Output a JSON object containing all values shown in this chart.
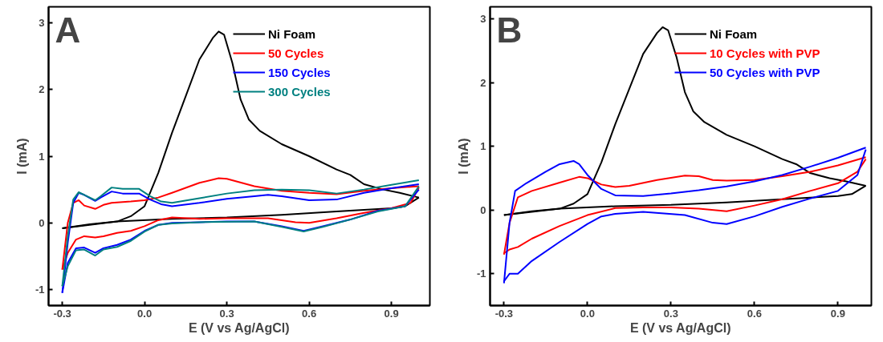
{
  "chart_data": [
    {
      "type": "line",
      "title": "A",
      "xlabel": "E (V vs Ag/AgCl)",
      "ylabel": "I (mA)",
      "xlim": [
        -0.35,
        1.04
      ],
      "ylim": [
        -1.24,
        3.24
      ],
      "xticks": [
        -0.3,
        {
          "value": 0,
          "label": "0.0"
        },
        0.3,
        0.6,
        0.9
      ],
      "yticks": [
        -1,
        0,
        1,
        2,
        3
      ],
      "legend": "top right",
      "grid": false,
      "marker": "none",
      "line_style": "solid",
      "series": [
        {
          "name": "Ni Foam",
          "color": "#000000",
          "x": [
            -0.3,
            -0.2,
            -0.1,
            -0.05,
            0.0,
            0.05,
            0.1,
            0.15,
            0.2,
            0.25,
            0.27,
            0.29,
            0.32,
            0.35,
            0.38,
            0.42,
            0.5,
            0.6,
            0.7,
            0.75,
            0.8,
            0.87,
            0.93,
            1.0
          ],
          "values": [
            -0.08,
            -0.02,
            0.02,
            0.1,
            0.25,
            0.75,
            1.35,
            1.9,
            2.45,
            2.78,
            2.87,
            2.82,
            2.4,
            1.85,
            1.55,
            1.38,
            1.18,
            1.0,
            0.8,
            0.72,
            0.58,
            0.5,
            0.45,
            0.38
          ]
        },
        {
          "color": "#000000",
          "x": [
            -0.3,
            -0.2,
            -0.1,
            0.1,
            0.3,
            0.5,
            0.7,
            0.9,
            0.95,
            1.0
          ],
          "values": [
            -0.08,
            -0.03,
            0.02,
            0.06,
            0.08,
            0.12,
            0.17,
            0.22,
            0.25,
            0.38
          ]
        },
        {
          "name": "50 Cycles",
          "color": "#ff0000",
          "x": [
            -0.3,
            -0.28,
            -0.26,
            -0.24,
            -0.22,
            -0.18,
            -0.15,
            -0.12,
            -0.05,
            0.0,
            0.05,
            0.1,
            0.2,
            0.27,
            0.3,
            0.4,
            0.5,
            0.6,
            0.7,
            0.8,
            0.9,
            1.0
          ],
          "values": [
            -0.7,
            0.0,
            0.3,
            0.34,
            0.26,
            0.21,
            0.27,
            0.3,
            0.32,
            0.34,
            0.38,
            0.45,
            0.6,
            0.67,
            0.66,
            0.55,
            0.48,
            0.45,
            0.43,
            0.48,
            0.52,
            0.55
          ]
        },
        {
          "color": "#ff0000",
          "x": [
            -0.3,
            -0.28,
            -0.25,
            -0.22,
            -0.18,
            -0.15,
            -0.1,
            -0.05,
            0.0,
            0.05,
            0.1,
            0.2,
            0.3,
            0.45,
            0.55,
            0.6,
            0.7,
            0.8,
            0.9,
            0.97,
            1.0
          ],
          "values": [
            -0.7,
            -0.45,
            -0.25,
            -0.2,
            -0.22,
            -0.2,
            -0.15,
            -0.12,
            -0.05,
            0.04,
            0.08,
            0.06,
            0.07,
            0.07,
            0.01,
            0.0,
            0.07,
            0.15,
            0.22,
            0.3,
            0.53
          ]
        },
        {
          "name": "150 Cycles",
          "color": "#0000ff",
          "x": [
            -0.3,
            -0.28,
            -0.26,
            -0.24,
            -0.22,
            -0.18,
            -0.16,
            -0.12,
            -0.08,
            -0.02,
            0.02,
            0.06,
            0.1,
            0.2,
            0.3,
            0.4,
            0.45,
            0.5,
            0.6,
            0.7,
            0.8,
            0.9,
            1.0
          ],
          "values": [
            -1.05,
            -0.3,
            0.3,
            0.45,
            0.42,
            0.33,
            0.38,
            0.47,
            0.44,
            0.44,
            0.35,
            0.28,
            0.25,
            0.3,
            0.36,
            0.4,
            0.42,
            0.4,
            0.34,
            0.35,
            0.45,
            0.52,
            0.58
          ]
        },
        {
          "color": "#0000ff",
          "x": [
            -0.3,
            -0.28,
            -0.25,
            -0.22,
            -0.18,
            -0.15,
            -0.1,
            -0.05,
            0.0,
            0.05,
            0.1,
            0.2,
            0.3,
            0.4,
            0.5,
            0.58,
            0.65,
            0.75,
            0.85,
            0.95,
            1.0
          ],
          "values": [
            -1.05,
            -0.6,
            -0.38,
            -0.37,
            -0.45,
            -0.38,
            -0.33,
            -0.25,
            -0.12,
            -0.03,
            0.0,
            0.01,
            0.02,
            0.02,
            -0.05,
            -0.12,
            -0.05,
            0.05,
            0.18,
            0.25,
            0.5
          ]
        },
        {
          "name": "300 Cycles",
          "color": "#008080",
          "x": [
            -0.3,
            -0.28,
            -0.26,
            -0.24,
            -0.22,
            -0.18,
            -0.16,
            -0.12,
            -0.08,
            -0.02,
            0.02,
            0.06,
            0.1,
            0.2,
            0.3,
            0.4,
            0.5,
            0.6,
            0.7,
            0.8,
            0.9,
            1.0
          ],
          "values": [
            -0.95,
            -0.2,
            0.35,
            0.46,
            0.42,
            0.34,
            0.4,
            0.53,
            0.51,
            0.51,
            0.4,
            0.32,
            0.3,
            0.37,
            0.44,
            0.49,
            0.5,
            0.49,
            0.44,
            0.5,
            0.57,
            0.64
          ]
        },
        {
          "color": "#008080",
          "x": [
            -0.3,
            -0.28,
            -0.25,
            -0.22,
            -0.18,
            -0.15,
            -0.1,
            -0.05,
            0.0,
            0.05,
            0.1,
            0.2,
            0.4,
            0.5,
            0.58,
            0.65,
            0.75,
            0.85,
            0.95,
            1.0
          ],
          "values": [
            -0.95,
            -0.65,
            -0.41,
            -0.4,
            -0.49,
            -0.4,
            -0.36,
            -0.27,
            -0.13,
            -0.03,
            -0.01,
            0.01,
            0.02,
            -0.06,
            -0.13,
            -0.06,
            0.05,
            0.17,
            0.25,
            0.55
          ]
        }
      ]
    },
    {
      "type": "line",
      "title": "B",
      "xlabel": "E (V vs Ag/AgCl)",
      "ylabel": "I (mA)",
      "xlim": [
        -0.35,
        1.02
      ],
      "ylim": [
        -1.5,
        3.19
      ],
      "xticks": [
        -0.3,
        {
          "value": 0,
          "label": "0.0"
        },
        0.3,
        0.6,
        0.9
      ],
      "yticks": [
        -1,
        0,
        1,
        2,
        3
      ],
      "legend": "top right",
      "grid": false,
      "marker": "none",
      "line_style": "solid",
      "series": [
        {
          "name": "Ni Foam",
          "color": "#000000",
          "x": [
            -0.3,
            -0.2,
            -0.1,
            -0.05,
            0.0,
            0.05,
            0.1,
            0.15,
            0.2,
            0.25,
            0.27,
            0.29,
            0.32,
            0.35,
            0.38,
            0.42,
            0.5,
            0.6,
            0.7,
            0.75,
            0.8,
            0.87,
            0.93,
            1.0
          ],
          "values": [
            -0.08,
            -0.02,
            0.02,
            0.1,
            0.25,
            0.75,
            1.35,
            1.9,
            2.45,
            2.78,
            2.87,
            2.82,
            2.4,
            1.85,
            1.55,
            1.38,
            1.18,
            1.0,
            0.8,
            0.72,
            0.58,
            0.5,
            0.45,
            0.38
          ]
        },
        {
          "color": "#000000",
          "x": [
            -0.3,
            -0.2,
            -0.1,
            0.1,
            0.3,
            0.5,
            0.7,
            0.9,
            0.95,
            1.0
          ],
          "values": [
            -0.08,
            -0.03,
            0.02,
            0.06,
            0.08,
            0.12,
            0.17,
            0.22,
            0.25,
            0.38
          ]
        },
        {
          "name": "10 Cycles with PVP",
          "color": "#ff0000",
          "x": [
            -0.3,
            -0.28,
            -0.25,
            -0.2,
            -0.1,
            -0.03,
            0.0,
            0.05,
            0.1,
            0.15,
            0.25,
            0.35,
            0.4,
            0.45,
            0.5,
            0.6,
            0.7,
            0.8,
            0.9,
            1.0
          ],
          "values": [
            -0.7,
            -0.2,
            0.2,
            0.3,
            0.43,
            0.52,
            0.5,
            0.4,
            0.36,
            0.38,
            0.47,
            0.54,
            0.53,
            0.47,
            0.46,
            0.47,
            0.53,
            0.6,
            0.7,
            0.83
          ]
        },
        {
          "color": "#ff0000",
          "x": [
            -0.3,
            -0.28,
            -0.25,
            -0.2,
            -0.1,
            0.0,
            0.1,
            0.2,
            0.3,
            0.4,
            0.5,
            0.6,
            0.7,
            0.8,
            0.9,
            0.97,
            1.0
          ],
          "values": [
            -0.68,
            -0.62,
            -0.58,
            -0.45,
            -0.25,
            -0.08,
            0.03,
            0.04,
            0.04,
            0.02,
            -0.02,
            0.07,
            0.17,
            0.3,
            0.42,
            0.6,
            0.8
          ]
        },
        {
          "name": "50 Cycles with PVP",
          "color": "#0000ff",
          "x": [
            -0.3,
            -0.28,
            -0.26,
            -0.22,
            -0.15,
            -0.1,
            -0.05,
            -0.03,
            0.0,
            0.05,
            0.1,
            0.2,
            0.3,
            0.4,
            0.5,
            0.6,
            0.7,
            0.8,
            0.9,
            1.0
          ],
          "values": [
            -1.15,
            -0.2,
            0.3,
            0.42,
            0.6,
            0.72,
            0.77,
            0.72,
            0.55,
            0.33,
            0.23,
            0.22,
            0.26,
            0.31,
            0.37,
            0.45,
            0.55,
            0.68,
            0.82,
            0.98
          ]
        },
        {
          "color": "#0000ff",
          "x": [
            -0.3,
            -0.28,
            -0.25,
            -0.2,
            -0.1,
            0.0,
            0.05,
            0.1,
            0.2,
            0.35,
            0.45,
            0.5,
            0.6,
            0.7,
            0.8,
            0.9,
            0.97,
            1.0
          ],
          "values": [
            -1.12,
            -1.0,
            -1.0,
            -0.8,
            -0.5,
            -0.22,
            -0.1,
            -0.06,
            -0.03,
            -0.08,
            -0.2,
            -0.22,
            -0.1,
            0.05,
            0.18,
            0.3,
            0.55,
            0.95
          ]
        }
      ]
    }
  ]
}
